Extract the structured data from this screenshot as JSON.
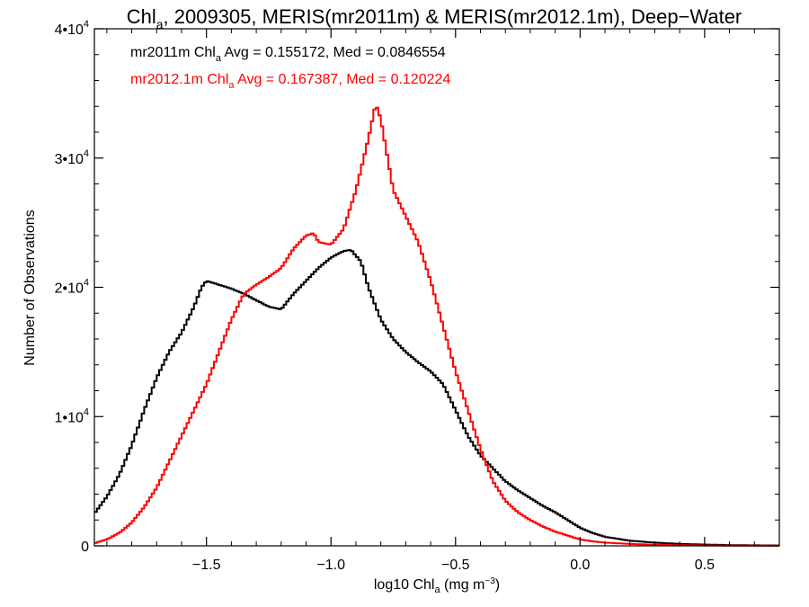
{
  "chart_data": {
    "type": "line",
    "title": {
      "main": "Chl",
      "sub": "a",
      "rest": ", 2009305, MERIS(mr2011m) & MERIS(mr2012.1m), Deep−Water"
    },
    "xlabel": {
      "pre": "log10 Chl",
      "sub": "a",
      "post": " (mg m",
      "sup": "−3",
      "end": ")"
    },
    "ylabel": "Number of Observations",
    "xlim": [
      -1.95,
      0.8
    ],
    "ylim": [
      0,
      40000
    ],
    "x_ticks": [
      {
        "value": -1.5,
        "label": "−1.5"
      },
      {
        "value": -1.0,
        "label": "−1.0"
      },
      {
        "value": -0.5,
        "label": "−0.5"
      },
      {
        "value": 0.0,
        "label": "0.0"
      },
      {
        "value": 0.5,
        "label": "0.5"
      }
    ],
    "y_ticks": [
      {
        "value": 0,
        "base": "0",
        "exp": ""
      },
      {
        "value": 10000,
        "base": "1•10",
        "exp": "4"
      },
      {
        "value": 20000,
        "base": "2•10",
        "exp": "4"
      },
      {
        "value": 30000,
        "base": "3•10",
        "exp": "4"
      },
      {
        "value": 40000,
        "base": "4•10",
        "exp": "4"
      }
    ],
    "grid": false,
    "legend_position": "top-left",
    "series": [
      {
        "name": "mr2011m",
        "color": "#000000",
        "stats": {
          "pre": "mr2011m Chl",
          "sub": "a",
          "post": " Avg = 0.155172, Med = 0.0846554"
        },
        "x": [
          -1.95,
          -1.9,
          -1.85,
          -1.8,
          -1.75,
          -1.7,
          -1.65,
          -1.6,
          -1.55,
          -1.52,
          -1.5,
          -1.45,
          -1.4,
          -1.35,
          -1.3,
          -1.25,
          -1.2,
          -1.15,
          -1.1,
          -1.05,
          -1.0,
          -0.95,
          -0.92,
          -0.88,
          -0.85,
          -0.8,
          -0.75,
          -0.7,
          -0.65,
          -0.6,
          -0.55,
          -0.5,
          -0.45,
          -0.4,
          -0.35,
          -0.3,
          -0.25,
          -0.2,
          -0.15,
          -0.1,
          -0.05,
          0.0,
          0.05,
          0.1,
          0.2,
          0.3,
          0.4,
          0.5,
          0.6,
          0.7,
          0.8
        ],
        "y": [
          2500,
          3800,
          5500,
          7800,
          10500,
          13000,
          15000,
          16500,
          18500,
          20000,
          20500,
          20200,
          19900,
          19500,
          19000,
          18500,
          18300,
          19500,
          20500,
          21500,
          22300,
          22800,
          22900,
          22000,
          20000,
          17500,
          16000,
          15000,
          14200,
          13500,
          12500,
          10500,
          8500,
          7000,
          6000,
          5000,
          4300,
          3700,
          3100,
          2600,
          2000,
          1400,
          1000,
          700,
          400,
          250,
          150,
          100,
          60,
          40,
          30
        ]
      },
      {
        "name": "mr2012.1m",
        "color": "#ff0000",
        "stats": {
          "pre": "mr2012.1m Chl",
          "sub": "a",
          "post": " Avg = 0.167387, Med = 0.120224"
        },
        "x": [
          -1.95,
          -1.9,
          -1.85,
          -1.8,
          -1.75,
          -1.7,
          -1.65,
          -1.6,
          -1.55,
          -1.5,
          -1.45,
          -1.4,
          -1.35,
          -1.3,
          -1.25,
          -1.2,
          -1.15,
          -1.1,
          -1.07,
          -1.05,
          -1.0,
          -0.95,
          -0.9,
          -0.85,
          -0.82,
          -0.8,
          -0.75,
          -0.7,
          -0.65,
          -0.6,
          -0.55,
          -0.5,
          -0.45,
          -0.4,
          -0.35,
          -0.3,
          -0.25,
          -0.2,
          -0.15,
          -0.1,
          -0.05,
          0.0,
          0.05,
          0.1,
          0.2,
          0.3,
          0.4,
          0.5,
          0.6,
          0.7,
          0.8
        ],
        "y": [
          200,
          500,
          1000,
          1800,
          3000,
          4500,
          6500,
          8500,
          10500,
          12500,
          15000,
          17500,
          19500,
          20200,
          20800,
          21500,
          23000,
          24000,
          24200,
          23500,
          23300,
          24500,
          27500,
          31500,
          34200,
          33000,
          27500,
          25500,
          23500,
          20500,
          17000,
          13500,
          10500,
          7500,
          5000,
          3500,
          2600,
          2000,
          1500,
          1100,
          800,
          500,
          350,
          250,
          150,
          80,
          50,
          30,
          20,
          10,
          5
        ]
      }
    ]
  }
}
